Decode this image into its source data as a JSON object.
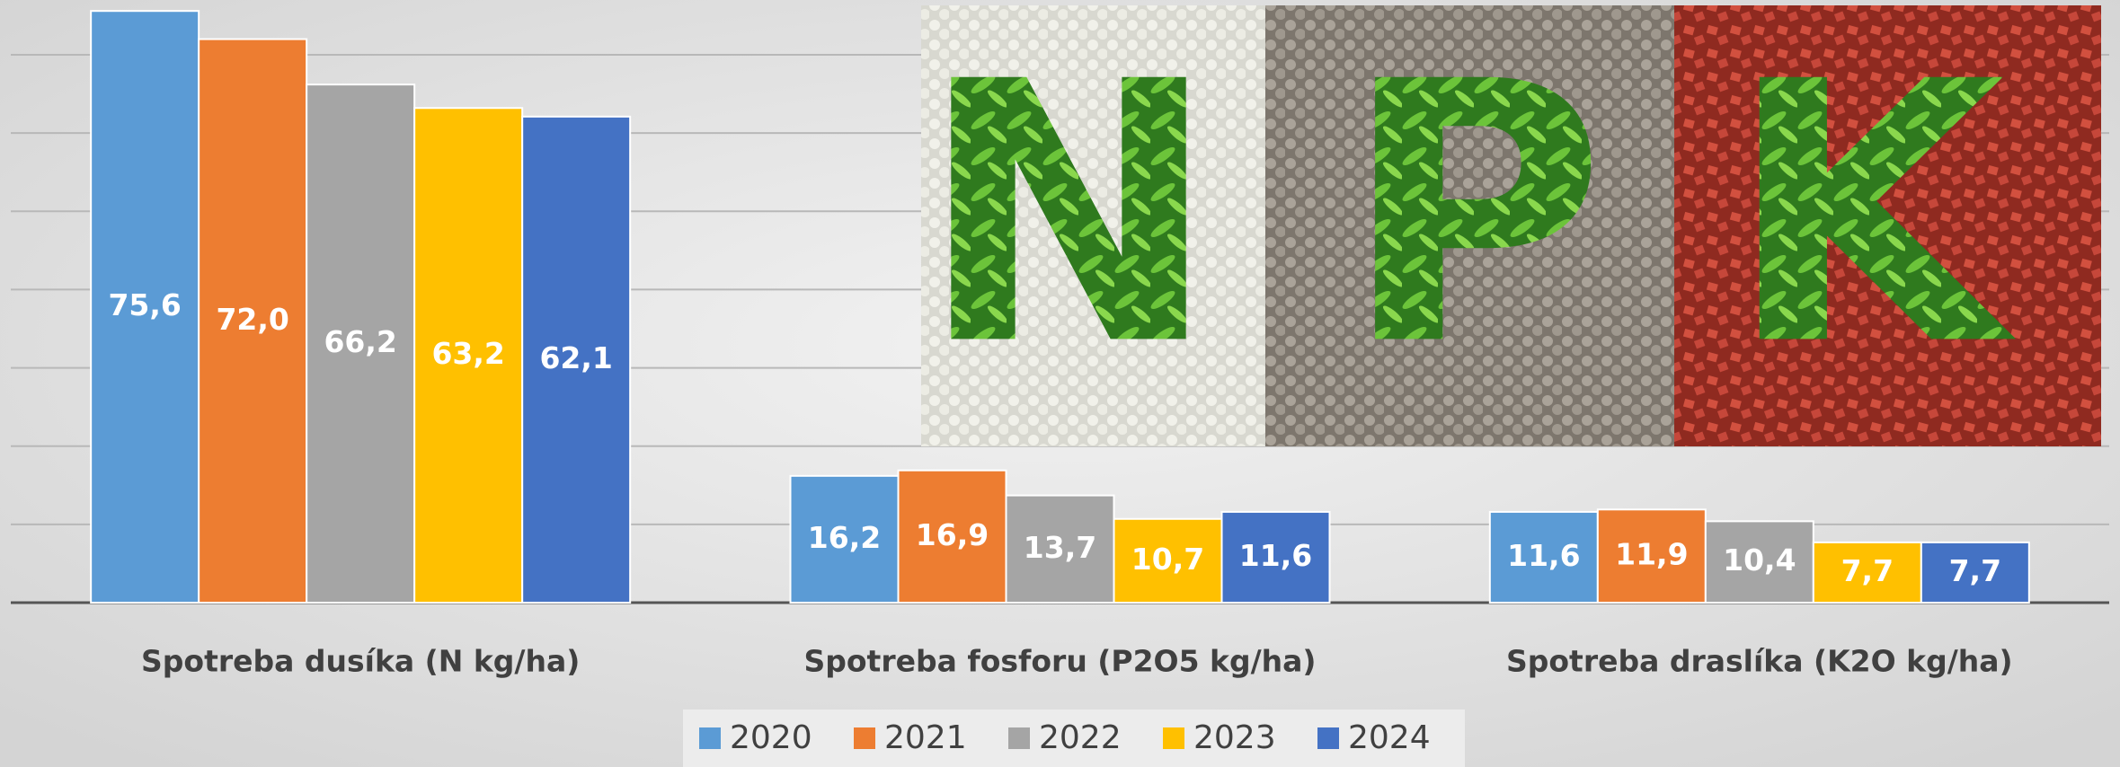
{
  "chart_data": {
    "type": "bar",
    "categories": [
      "Spotreba dusíka (N kg/ha)",
      "Spotreba fosforu (P2O5 kg/ha)",
      "Spotreba draslíka (K2O kg/ha)"
    ],
    "series": [
      {
        "name": "2020",
        "color": "#5b9bd5",
        "values": [
          75.6,
          16.2,
          11.6
        ],
        "value_labels": [
          "75,6",
          "16,2",
          "11,6"
        ]
      },
      {
        "name": "2021",
        "color": "#ed7d31",
        "values": [
          72.0,
          16.9,
          11.9
        ],
        "value_labels": [
          "72,0",
          "16,9",
          "11,9"
        ]
      },
      {
        "name": "2022",
        "color": "#a5a5a5",
        "values": [
          66.2,
          13.7,
          10.4
        ],
        "value_labels": [
          "66,2",
          "13,7",
          "10,4"
        ]
      },
      {
        "name": "2023",
        "color": "#ffc000",
        "values": [
          63.2,
          10.7,
          7.7
        ],
        "value_labels": [
          "63,2",
          "10,7",
          "7,7"
        ]
      },
      {
        "name": "2024",
        "color": "#4472c4",
        "values": [
          62.1,
          11.6,
          7.7
        ],
        "value_labels": [
          "62,1",
          "11,6",
          "7,7"
        ]
      }
    ],
    "ylim": [
      0,
      77
    ],
    "yticks": [
      0,
      10,
      20,
      30,
      40,
      50,
      60,
      70
    ],
    "grid": true,
    "show_ytick_labels": false,
    "legend": "bottom",
    "image_letters": [
      "N",
      "P",
      "K"
    ]
  }
}
